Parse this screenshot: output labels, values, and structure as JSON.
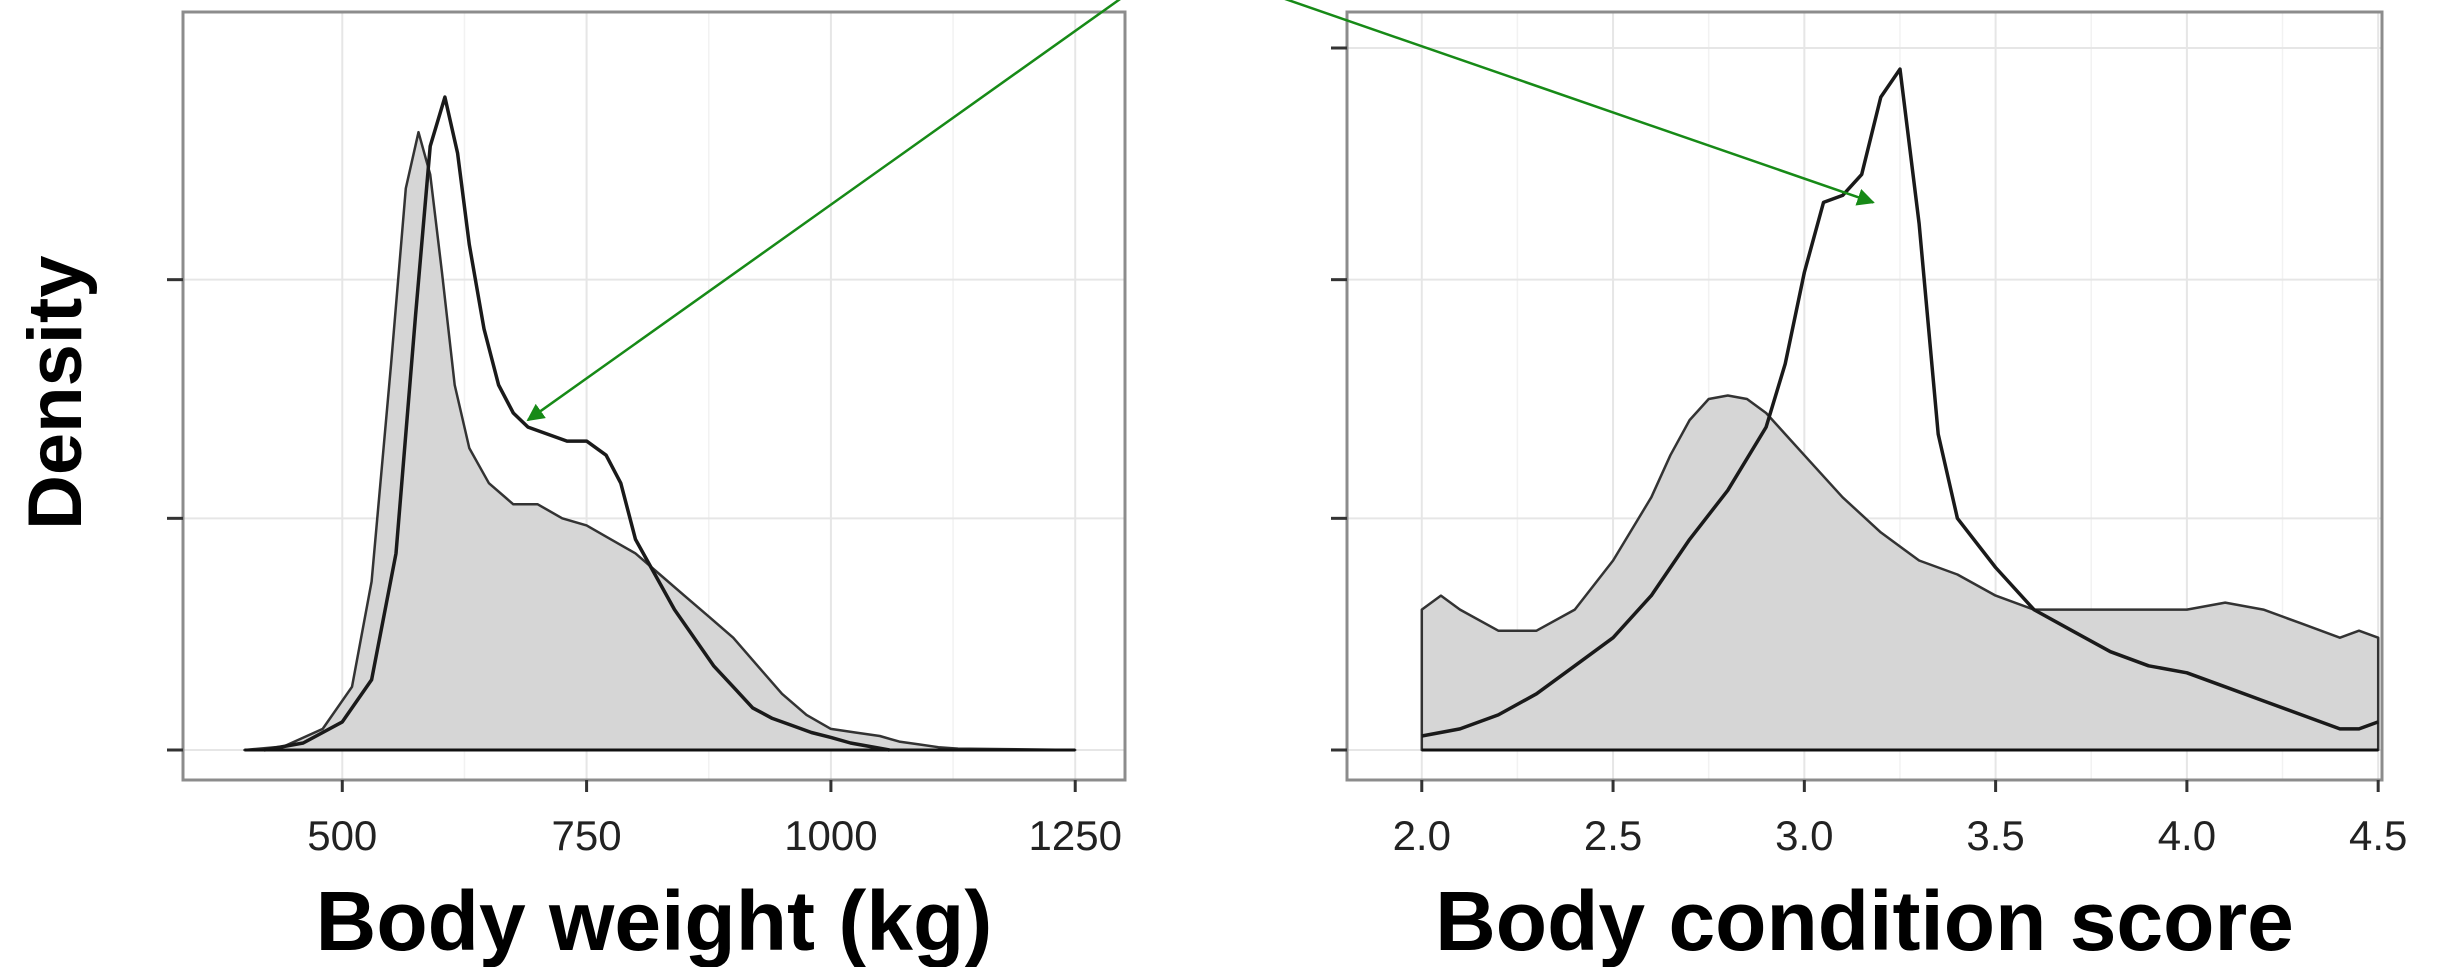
{
  "y_axis_title": "Density",
  "colors": {
    "filled_fill": "#d6d6d6",
    "line": "#1a1a1a",
    "annotation_arrow": "#178a17",
    "grid": "#e6e6e6",
    "panel_border": "#8c8c8c"
  },
  "chart_data": [
    {
      "type": "area",
      "xlabel": "Body weight (kg)",
      "ylabel": "Density",
      "xlim": [
        380,
        1260
      ],
      "xticks": [
        500,
        750,
        1000,
        1250
      ],
      "xtick_labels": [
        "500",
        "750",
        "1000",
        "1250"
      ],
      "ylim": [
        0,
        1
      ],
      "yticks": [
        0,
        0.33,
        0.67
      ],
      "ytick_labels": [
        "",
        "",
        ""
      ],
      "grid": true,
      "legend": "none",
      "series": [
        {
          "style": "filled",
          "x": [
            400,
            440,
            480,
            510,
            530,
            550,
            565,
            578,
            590,
            602,
            615,
            630,
            650,
            675,
            700,
            725,
            750,
            775,
            800,
            825,
            850,
            875,
            900,
            925,
            950,
            975,
            1000,
            1025,
            1050,
            1070,
            1090,
            1110,
            1130,
            1250
          ],
          "y": [
            0,
            0.005,
            0.03,
            0.09,
            0.24,
            0.55,
            0.8,
            0.88,
            0.82,
            0.68,
            0.52,
            0.43,
            0.38,
            0.35,
            0.35,
            0.33,
            0.32,
            0.3,
            0.28,
            0.25,
            0.22,
            0.19,
            0.16,
            0.12,
            0.08,
            0.05,
            0.03,
            0.025,
            0.02,
            0.012,
            0.008,
            0.004,
            0.002,
            0
          ]
        },
        {
          "style": "outline",
          "x": [
            420,
            460,
            500,
            530,
            555,
            575,
            590,
            605,
            618,
            630,
            645,
            660,
            675,
            690,
            710,
            730,
            750,
            770,
            785,
            800,
            820,
            840,
            860,
            880,
            900,
            920,
            940,
            960,
            980,
            1000,
            1020,
            1040,
            1060
          ],
          "y": [
            0,
            0.01,
            0.04,
            0.1,
            0.28,
            0.62,
            0.86,
            0.93,
            0.85,
            0.72,
            0.6,
            0.52,
            0.48,
            0.46,
            0.45,
            0.44,
            0.44,
            0.42,
            0.38,
            0.3,
            0.25,
            0.2,
            0.16,
            0.12,
            0.09,
            0.06,
            0.045,
            0.035,
            0.025,
            0.018,
            0.01,
            0.005,
            0
          ]
        }
      ]
    },
    {
      "type": "area",
      "xlabel": "Body condition score",
      "ylabel": "Density",
      "xlim": [
        1.93,
        4.51
      ],
      "xticks": [
        2.0,
        2.5,
        3.0,
        3.5,
        4.0,
        4.5
      ],
      "xtick_labels": [
        "2.0",
        "2.5",
        "3.0",
        "3.5",
        "4.0",
        "4.5"
      ],
      "ylim": [
        0,
        1
      ],
      "yticks": [
        0,
        0.33,
        0.67,
        1.0
      ],
      "ytick_labels": [
        "",
        "",
        "",
        ""
      ],
      "grid": true,
      "legend": "none",
      "series": [
        {
          "style": "filled",
          "x": [
            2.0,
            2.05,
            2.1,
            2.2,
            2.3,
            2.4,
            2.5,
            2.6,
            2.65,
            2.7,
            2.75,
            2.8,
            2.85,
            2.9,
            2.95,
            3.0,
            3.1,
            3.2,
            3.3,
            3.4,
            3.5,
            3.6,
            3.7,
            3.8,
            3.9,
            4.0,
            4.1,
            4.2,
            4.3,
            4.4,
            4.45,
            4.5
          ],
          "y": [
            0.2,
            0.22,
            0.2,
            0.17,
            0.17,
            0.2,
            0.27,
            0.36,
            0.42,
            0.47,
            0.5,
            0.505,
            0.5,
            0.48,
            0.45,
            0.42,
            0.36,
            0.31,
            0.27,
            0.25,
            0.22,
            0.2,
            0.2,
            0.2,
            0.2,
            0.2,
            0.21,
            0.2,
            0.18,
            0.16,
            0.17,
            0.16
          ]
        },
        {
          "style": "outline",
          "x": [
            2.0,
            2.1,
            2.2,
            2.3,
            2.4,
            2.5,
            2.6,
            2.7,
            2.8,
            2.9,
            2.95,
            3.0,
            3.05,
            3.1,
            3.15,
            3.2,
            3.25,
            3.3,
            3.35,
            3.4,
            3.5,
            3.6,
            3.7,
            3.8,
            3.9,
            4.0,
            4.1,
            4.2,
            4.3,
            4.4,
            4.45,
            4.5
          ],
          "y": [
            0.02,
            0.03,
            0.05,
            0.08,
            0.12,
            0.16,
            0.22,
            0.3,
            0.37,
            0.46,
            0.55,
            0.68,
            0.78,
            0.79,
            0.82,
            0.93,
            0.97,
            0.75,
            0.45,
            0.33,
            0.26,
            0.2,
            0.17,
            0.14,
            0.12,
            0.11,
            0.09,
            0.07,
            0.05,
            0.03,
            0.03,
            0.04
          ]
        }
      ]
    }
  ],
  "annotations": [
    {
      "type": "arrow",
      "chart": 0,
      "x": 690,
      "y": 0.47
    },
    {
      "type": "arrow",
      "chart": 1,
      "x": 3.18,
      "y": 0.78
    }
  ]
}
